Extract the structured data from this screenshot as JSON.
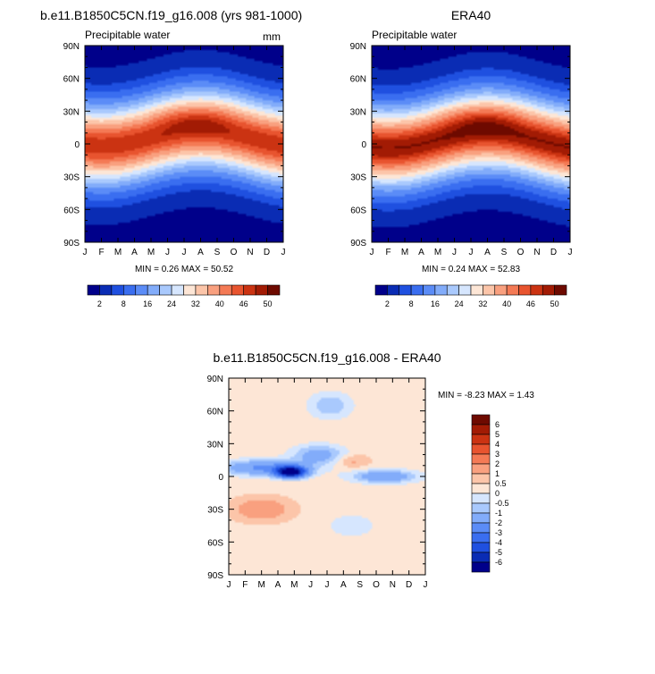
{
  "chart_data": [
    {
      "type": "heatmap",
      "title": "b.e11.B1850C5CN.f19_g16.008 (yrs 981-1000)",
      "subtitle": "Precipitable water",
      "units": "mm",
      "x_ticks": [
        "J",
        "F",
        "M",
        "A",
        "M",
        "J",
        "J",
        "A",
        "S",
        "O",
        "N",
        "D",
        "J"
      ],
      "y_ticks": [
        "90N",
        "60N",
        "30N",
        "0",
        "30S",
        "60S",
        "90S"
      ],
      "stats": "MIN =  0.26 MAX =  50.52",
      "min": 0.26,
      "max": 50.52,
      "peak_lat": 8,
      "colorbar": {
        "labels": [
          "2",
          "8",
          "16",
          "24",
          "32",
          "40",
          "46",
          "50"
        ],
        "colors": [
          "#00008a",
          "#0a2cb4",
          "#1f50e0",
          "#3a6ef0",
          "#5b8cf7",
          "#82acfa",
          "#a9c9fd",
          "#d6e6fe",
          "#fde6d6",
          "#fcc5a9",
          "#f9a07f",
          "#f47a55",
          "#e8542f",
          "#cb3312",
          "#a21b04",
          "#6e0a00"
        ]
      }
    },
    {
      "type": "heatmap",
      "title": "ERA40",
      "subtitle": "Precipitable water",
      "x_ticks": [
        "J",
        "F",
        "M",
        "A",
        "M",
        "J",
        "J",
        "A",
        "S",
        "O",
        "N",
        "D",
        "J"
      ],
      "y_ticks": [
        "90N",
        "60N",
        "30N",
        "0",
        "30S",
        "60S",
        "90S"
      ],
      "stats": "MIN =  0.24 MAX =  52.83",
      "min": 0.24,
      "max": 52.83,
      "peak_lat": 6,
      "colorbar": {
        "labels": [
          "2",
          "8",
          "16",
          "24",
          "32",
          "40",
          "46",
          "50"
        ],
        "colors": [
          "#00008a",
          "#0a2cb4",
          "#1f50e0",
          "#3a6ef0",
          "#5b8cf7",
          "#82acfa",
          "#a9c9fd",
          "#d6e6fe",
          "#fde6d6",
          "#fcc5a9",
          "#f9a07f",
          "#f47a55",
          "#e8542f",
          "#cb3312",
          "#a21b04",
          "#6e0a00"
        ]
      }
    },
    {
      "type": "heatmap",
      "title": "b.e11.B1850C5CN.f19_g16.008 - ERA40",
      "x_ticks": [
        "J",
        "F",
        "M",
        "A",
        "M",
        "J",
        "J",
        "A",
        "S",
        "O",
        "N",
        "D",
        "J"
      ],
      "y_ticks": [
        "90N",
        "60N",
        "30N",
        "0",
        "30S",
        "60S",
        "90S"
      ],
      "stats": "MIN = -8.23 MAX =  1.43",
      "min": -8.23,
      "max": 1.43,
      "colorbar": {
        "labels": [
          "6",
          "5",
          "4",
          "3",
          "2",
          "1",
          "0.5",
          "0",
          "-0.5",
          "-1",
          "-2",
          "-3",
          "-4",
          "-5",
          "-6"
        ],
        "colors": [
          "#6e0a00",
          "#a21b04",
          "#cb3312",
          "#e8542f",
          "#f47a55",
          "#f9a07f",
          "#fcc5a9",
          "#fde6d6",
          "#d6e6fe",
          "#a9c9fd",
          "#82acfa",
          "#5b8cf7",
          "#3a6ef0",
          "#1f50e0",
          "#0a2cb4",
          "#00008a"
        ]
      }
    }
  ]
}
